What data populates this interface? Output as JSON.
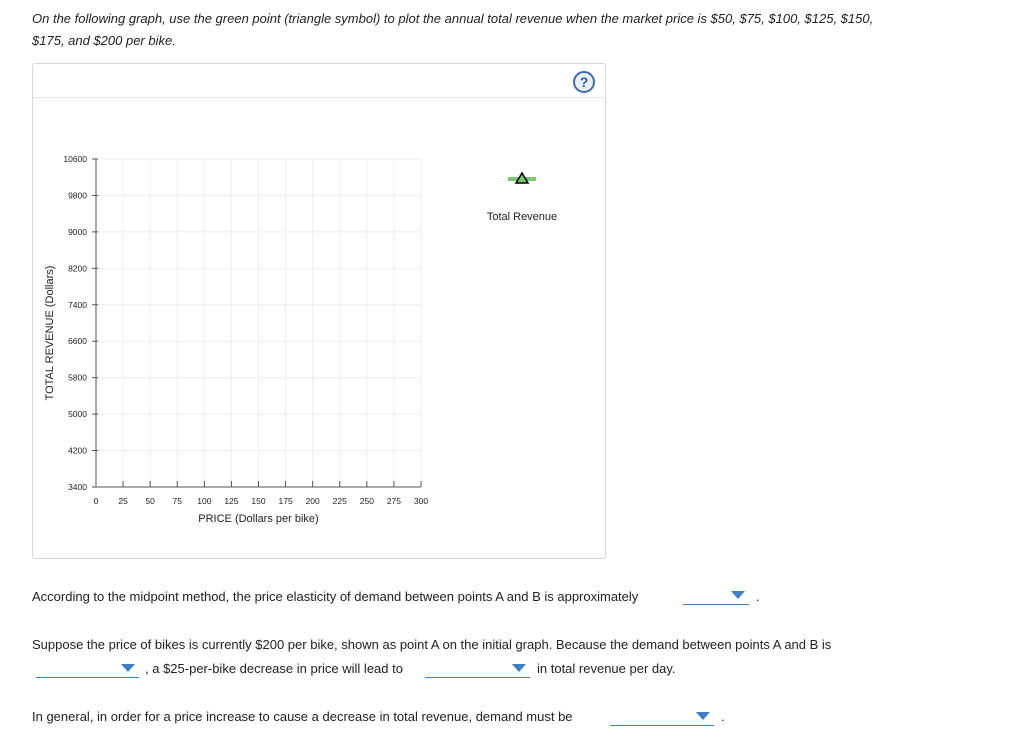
{
  "instructions": {
    "line1": "On the following graph, use the green point (triangle symbol) to plot the annual total revenue when the market price is $50, $75, $100, $125, $150,",
    "line2": "$175, and $200 per bike."
  },
  "graph": {
    "help_label": "?",
    "legend_label": "Total Revenue",
    "point_color": "#7cc576",
    "icons": [
      "help-icon",
      "triangle-point-icon"
    ],
    "chart_data": {
      "type": "scatter",
      "title": "",
      "xlabel": "PRICE (Dollars per bike)",
      "ylabel": "TOTAL REVENUE (Dollars)",
      "xlim": [
        0,
        300
      ],
      "ylim": [
        3400,
        10600
      ],
      "x_ticks": [
        "0",
        "25",
        "50",
        "75",
        "100",
        "125",
        "150",
        "175",
        "200",
        "225",
        "250",
        "275",
        "300"
      ],
      "y_ticks": [
        "10600",
        "9800",
        "9000",
        "8200",
        "7400",
        "6600",
        "5800",
        "5000",
        "4200",
        "3400"
      ],
      "grid": true,
      "legend": "right",
      "series": [
        {
          "name": "Total Revenue",
          "values": []
        }
      ]
    }
  },
  "questions": {
    "q1_text": "According to the midpoint method, the price elasticity of demand between points A and B is approximately",
    "q1_end": ".",
    "q2_text": "Suppose the price of bikes is currently $200 per bike, shown as point A on the initial graph. Because the demand between points A and B is",
    "q2_mid": ", a $25-per-bike decrease in price will lead to",
    "q2_end": "in total revenue per day.",
    "q3_text": "In general, in order for a price increase to cause a decrease in total revenue, demand must be",
    "q3_end": ".",
    "dropdown_values": {
      "q1": "",
      "q2a": "",
      "q2b": "",
      "q3": ""
    }
  }
}
